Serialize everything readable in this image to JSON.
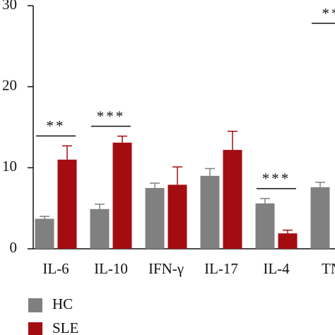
{
  "chart_data": {
    "type": "bar",
    "categories": [
      "IL-6",
      "IL-10",
      "IFN-γ",
      "IL-17",
      "IL-4",
      "TN"
    ],
    "series": [
      {
        "name": "HC",
        "color": "#808080",
        "values": [
          3.7,
          4.9,
          7.5,
          9.0,
          5.6,
          7.6
        ],
        "errors": [
          0.3,
          0.6,
          0.6,
          0.9,
          0.6,
          0.6
        ]
      },
      {
        "name": "SLE",
        "color": "#a30d12",
        "values": [
          11.0,
          13.1,
          7.9,
          12.2,
          1.9,
          null
        ],
        "errors": [
          1.7,
          0.8,
          2.2,
          2.3,
          0.4,
          null
        ]
      }
    ],
    "ylim": [
      0,
      30
    ],
    "yticks": [
      0,
      10,
      20,
      30
    ],
    "annotations": [
      {
        "text": "**",
        "category": 0
      },
      {
        "text": "***",
        "category": 1
      },
      {
        "text": "***",
        "category": 4
      },
      {
        "text": "**",
        "category": 5
      }
    ]
  }
}
